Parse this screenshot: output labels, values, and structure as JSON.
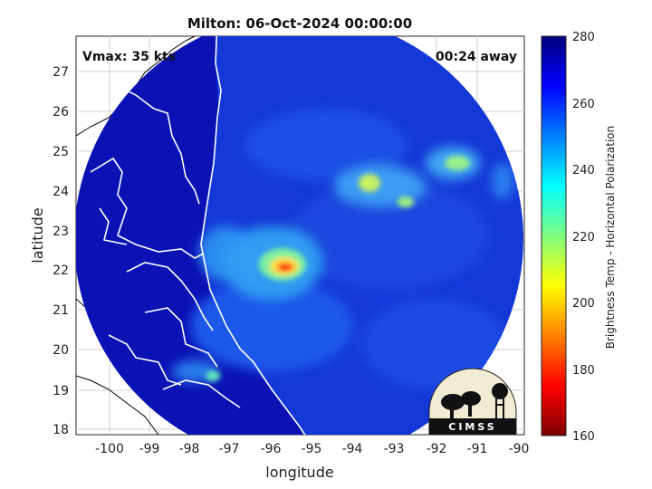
{
  "map": {
    "title": "Milton: 06-Oct-2024 00:00:00",
    "vmax_text": "Vmax: 35 kts",
    "away_text": "00:24 away",
    "xlabel": "longitude",
    "ylabel": "latitude",
    "x_ticks": [
      "-100",
      "-99",
      "-98",
      "-97",
      "-96",
      "-95",
      "-94",
      "-93",
      "-92",
      "-91",
      "-90"
    ],
    "y_ticks": [
      "27",
      "26",
      "25",
      "24",
      "23",
      "22",
      "21",
      "20",
      "19",
      "18"
    ],
    "lon_range": [
      -100.6,
      -89.9
    ],
    "lat_range": [
      17.8,
      27.8
    ],
    "center": {
      "lon": -95.3,
      "lat": 22.8
    },
    "storm_core": {
      "lon": -95.7,
      "lat": 22.1,
      "min_brightness_temp": 192
    },
    "grid": "on"
  },
  "colorbar": {
    "label": "Brightness Temp - Horizontal Polarization",
    "ticks": [
      "280",
      "260",
      "240",
      "220",
      "200",
      "180",
      "160"
    ],
    "range": [
      160,
      280
    ],
    "colors": [
      "#7f0000",
      "#ff0000",
      "#ff8000",
      "#ffff00",
      "#80ff80",
      "#00ffff",
      "#0080ff",
      "#0000ff",
      "#00007f"
    ]
  },
  "logo": {
    "text": "CIMSS"
  }
}
